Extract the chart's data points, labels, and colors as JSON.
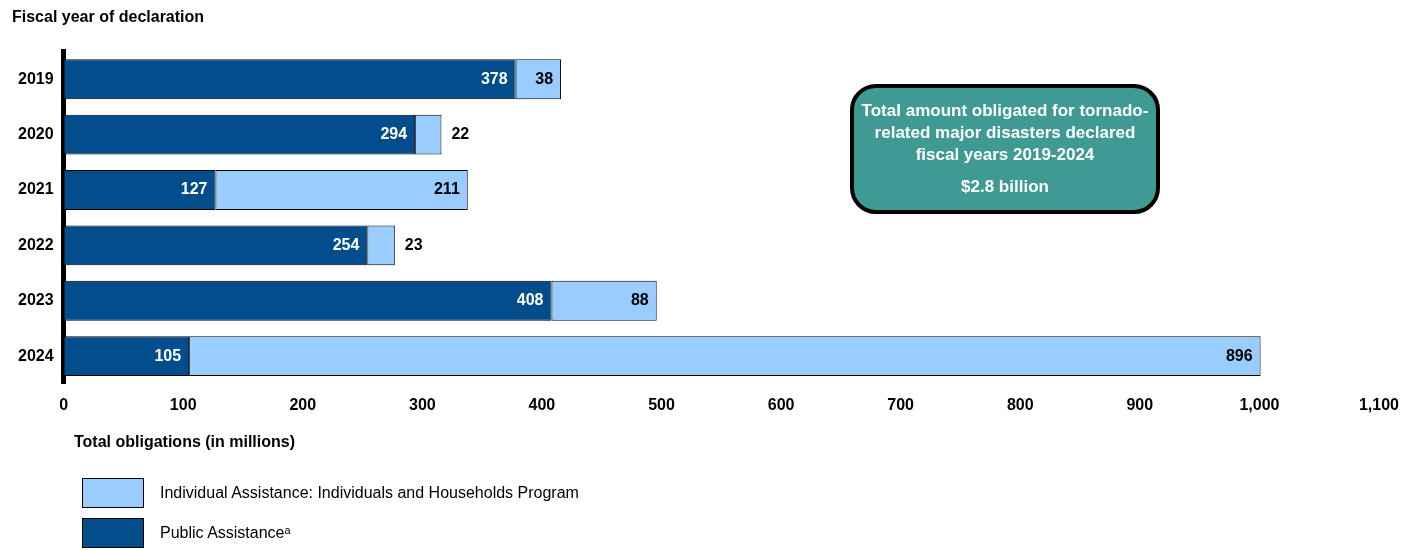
{
  "chart_data": {
    "type": "bar",
    "orientation": "horizontal",
    "stacked": true,
    "ylabel": "Fiscal year of declaration",
    "xlabel": "Total obligations (in millions)",
    "categories": [
      "2019",
      "2020",
      "2021",
      "2022",
      "2023",
      "2024"
    ],
    "series": [
      {
        "name": "Public Assistanceᵃ",
        "color": "#034d8c",
        "values": [
          378,
          294,
          127,
          254,
          408,
          105
        ]
      },
      {
        "name": "Individual Assistance: Individuals and Households Program",
        "color": "#99ccff",
        "values": [
          38,
          22,
          211,
          23,
          88,
          896
        ]
      }
    ],
    "xlim": [
      0,
      1100
    ],
    "xticks": [
      0,
      100,
      200,
      300,
      400,
      500,
      600,
      700,
      800,
      900,
      {
        "value": 1000,
        "label": "1,000"
      },
      {
        "value": 1100,
        "label": "1,100"
      }
    ],
    "data_labels": true,
    "grid": false,
    "legend": "bottom left",
    "annotations": [
      "Total amount obligated for tornado-related major disasters declared fiscal years 2019-2024",
      "$2.8 billion"
    ]
  }
}
